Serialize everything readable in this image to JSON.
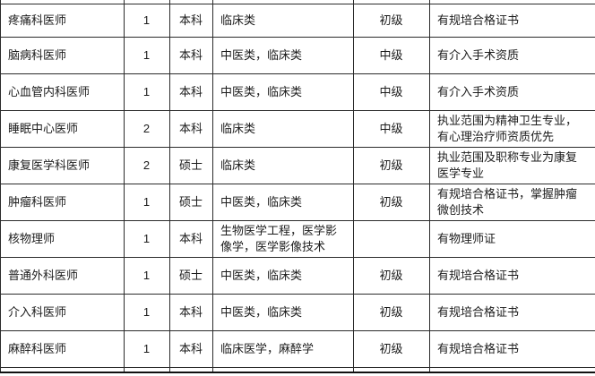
{
  "colors": {
    "background": "#ffffff",
    "border": "#2b2b2b",
    "text": "#1c1c1c"
  },
  "table": {
    "columns": [
      "position",
      "count",
      "education",
      "category",
      "level",
      "requirement"
    ],
    "rows": [
      {
        "position": "疼痛科医师",
        "count": "1",
        "education": "本科",
        "category": "临床类",
        "level": "初级",
        "requirement": "有规培合格证书"
      },
      {
        "position": "脑病科医师",
        "count": "1",
        "education": "本科",
        "category": "中医类，临床类",
        "level": "中级",
        "requirement": "有介入手术资质"
      },
      {
        "position": "心血管内科医师",
        "count": "1",
        "education": "本科",
        "category": "中医类，临床类",
        "level": "中级",
        "requirement": "有介入手术资质"
      },
      {
        "position": "睡眠中心医师",
        "count": "2",
        "education": "本科",
        "category": "临床类",
        "level": "中级",
        "requirement": "执业范围为精神卫生专业，有心理治疗师资质优先"
      },
      {
        "position": "康复医学科医师",
        "count": "2",
        "education": "硕士",
        "category": "临床类",
        "level": "初级",
        "requirement": "执业范围及职称专业为康复医学专业"
      },
      {
        "position": "肿瘤科医师",
        "count": "1",
        "education": "硕士",
        "category": "中医类，临床类",
        "level": "初级",
        "requirement": "有规培合格证书，掌握肿瘤微创技术"
      },
      {
        "position": "核物理师",
        "count": "1",
        "education": "本科",
        "category": "生物医学工程，医学影像学，医学影像技术",
        "level": "",
        "requirement": "有物理师证"
      },
      {
        "position": "普通外科医师",
        "count": "1",
        "education": "硕士",
        "category": "中医类，临床类",
        "level": "初级",
        "requirement": "有规培合格证书"
      },
      {
        "position": "介入科医师",
        "count": "1",
        "education": "本科",
        "category": "中医类，临床类",
        "level": "初级",
        "requirement": "有规培合格证书"
      },
      {
        "position": "麻醉科医师",
        "count": "1",
        "education": "本科",
        "category": "临床医学，麻醉学",
        "level": "初级",
        "requirement": "有规培合格证书"
      }
    ]
  }
}
